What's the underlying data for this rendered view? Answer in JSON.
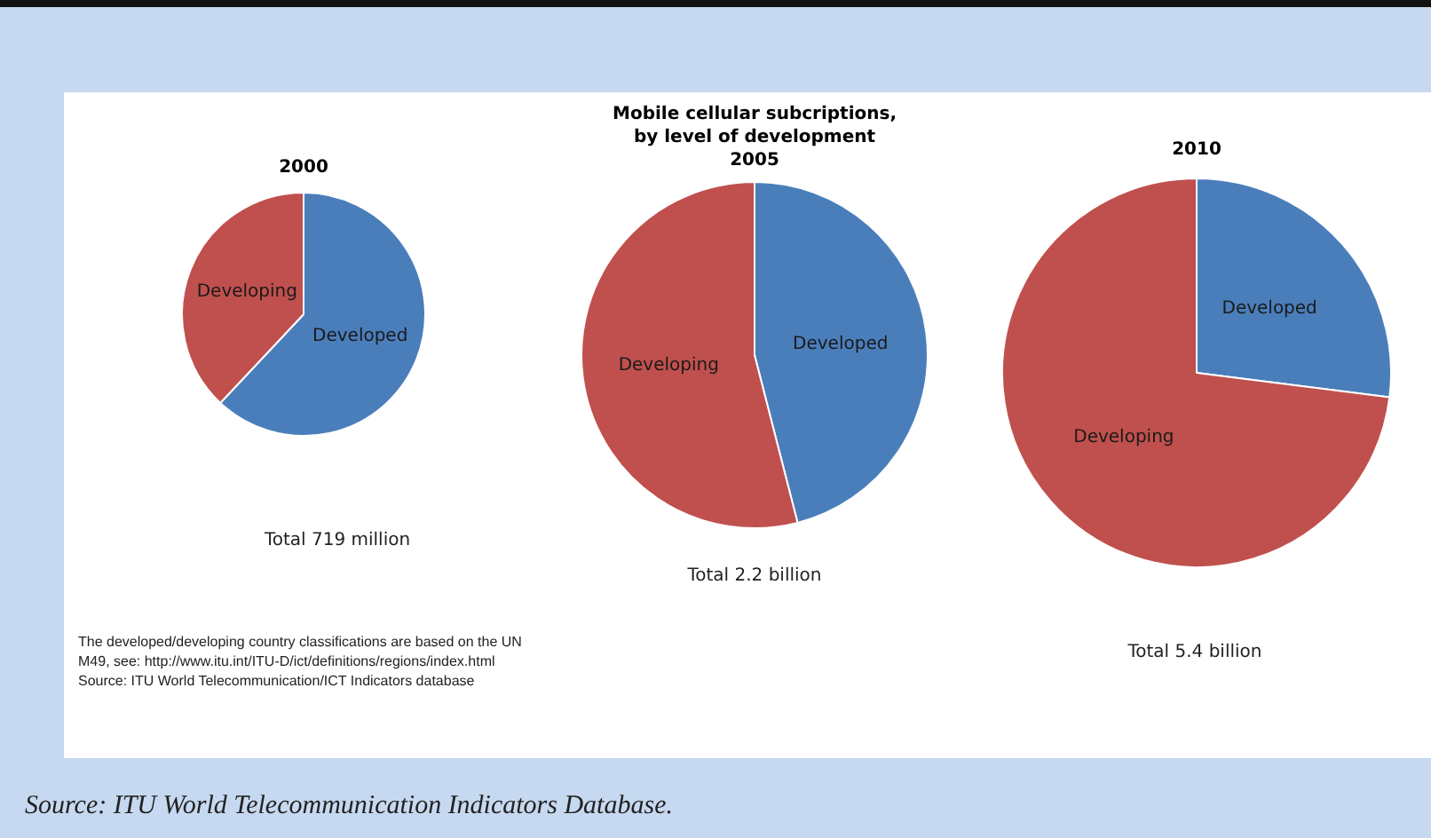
{
  "chart_data": [
    {
      "type": "pie",
      "title": "2000",
      "categories": [
        "Developed",
        "Developing"
      ],
      "values": [
        62,
        38
      ],
      "colors": [
        "#4a7ebb",
        "#c0504d"
      ],
      "legend": false,
      "data_labels": false,
      "annotations": [
        "Total 719 million",
        "The developed/developing country classifications are based on the UN M49, see: http://www.itu.int/ITU-D/ict/definitions/regions/index.html Source: ITU World Telecommunication/ICT Indicators database"
      ]
    },
    {
      "type": "pie",
      "title": "Mobile cellular subcriptions, by level of development",
      "subtitle": "2005",
      "categories": [
        "Developed",
        "Developing"
      ],
      "values": [
        46,
        54
      ],
      "colors": [
        "#4a7ebb",
        "#c0504d"
      ],
      "legend": false,
      "data_labels": false,
      "annotations": [
        "Total  2.2 billion"
      ]
    },
    {
      "type": "pie",
      "title": "2010",
      "categories": [
        "Developed",
        "Developing"
      ],
      "values": [
        27,
        73
      ],
      "colors": [
        "#4a7ebb",
        "#c0504d"
      ],
      "legend": false,
      "data_labels": false,
      "annotations": [
        "Total 5.4 billion",
        "Source: ITU World Telecommunication Indicators Database."
      ]
    }
  ]
}
